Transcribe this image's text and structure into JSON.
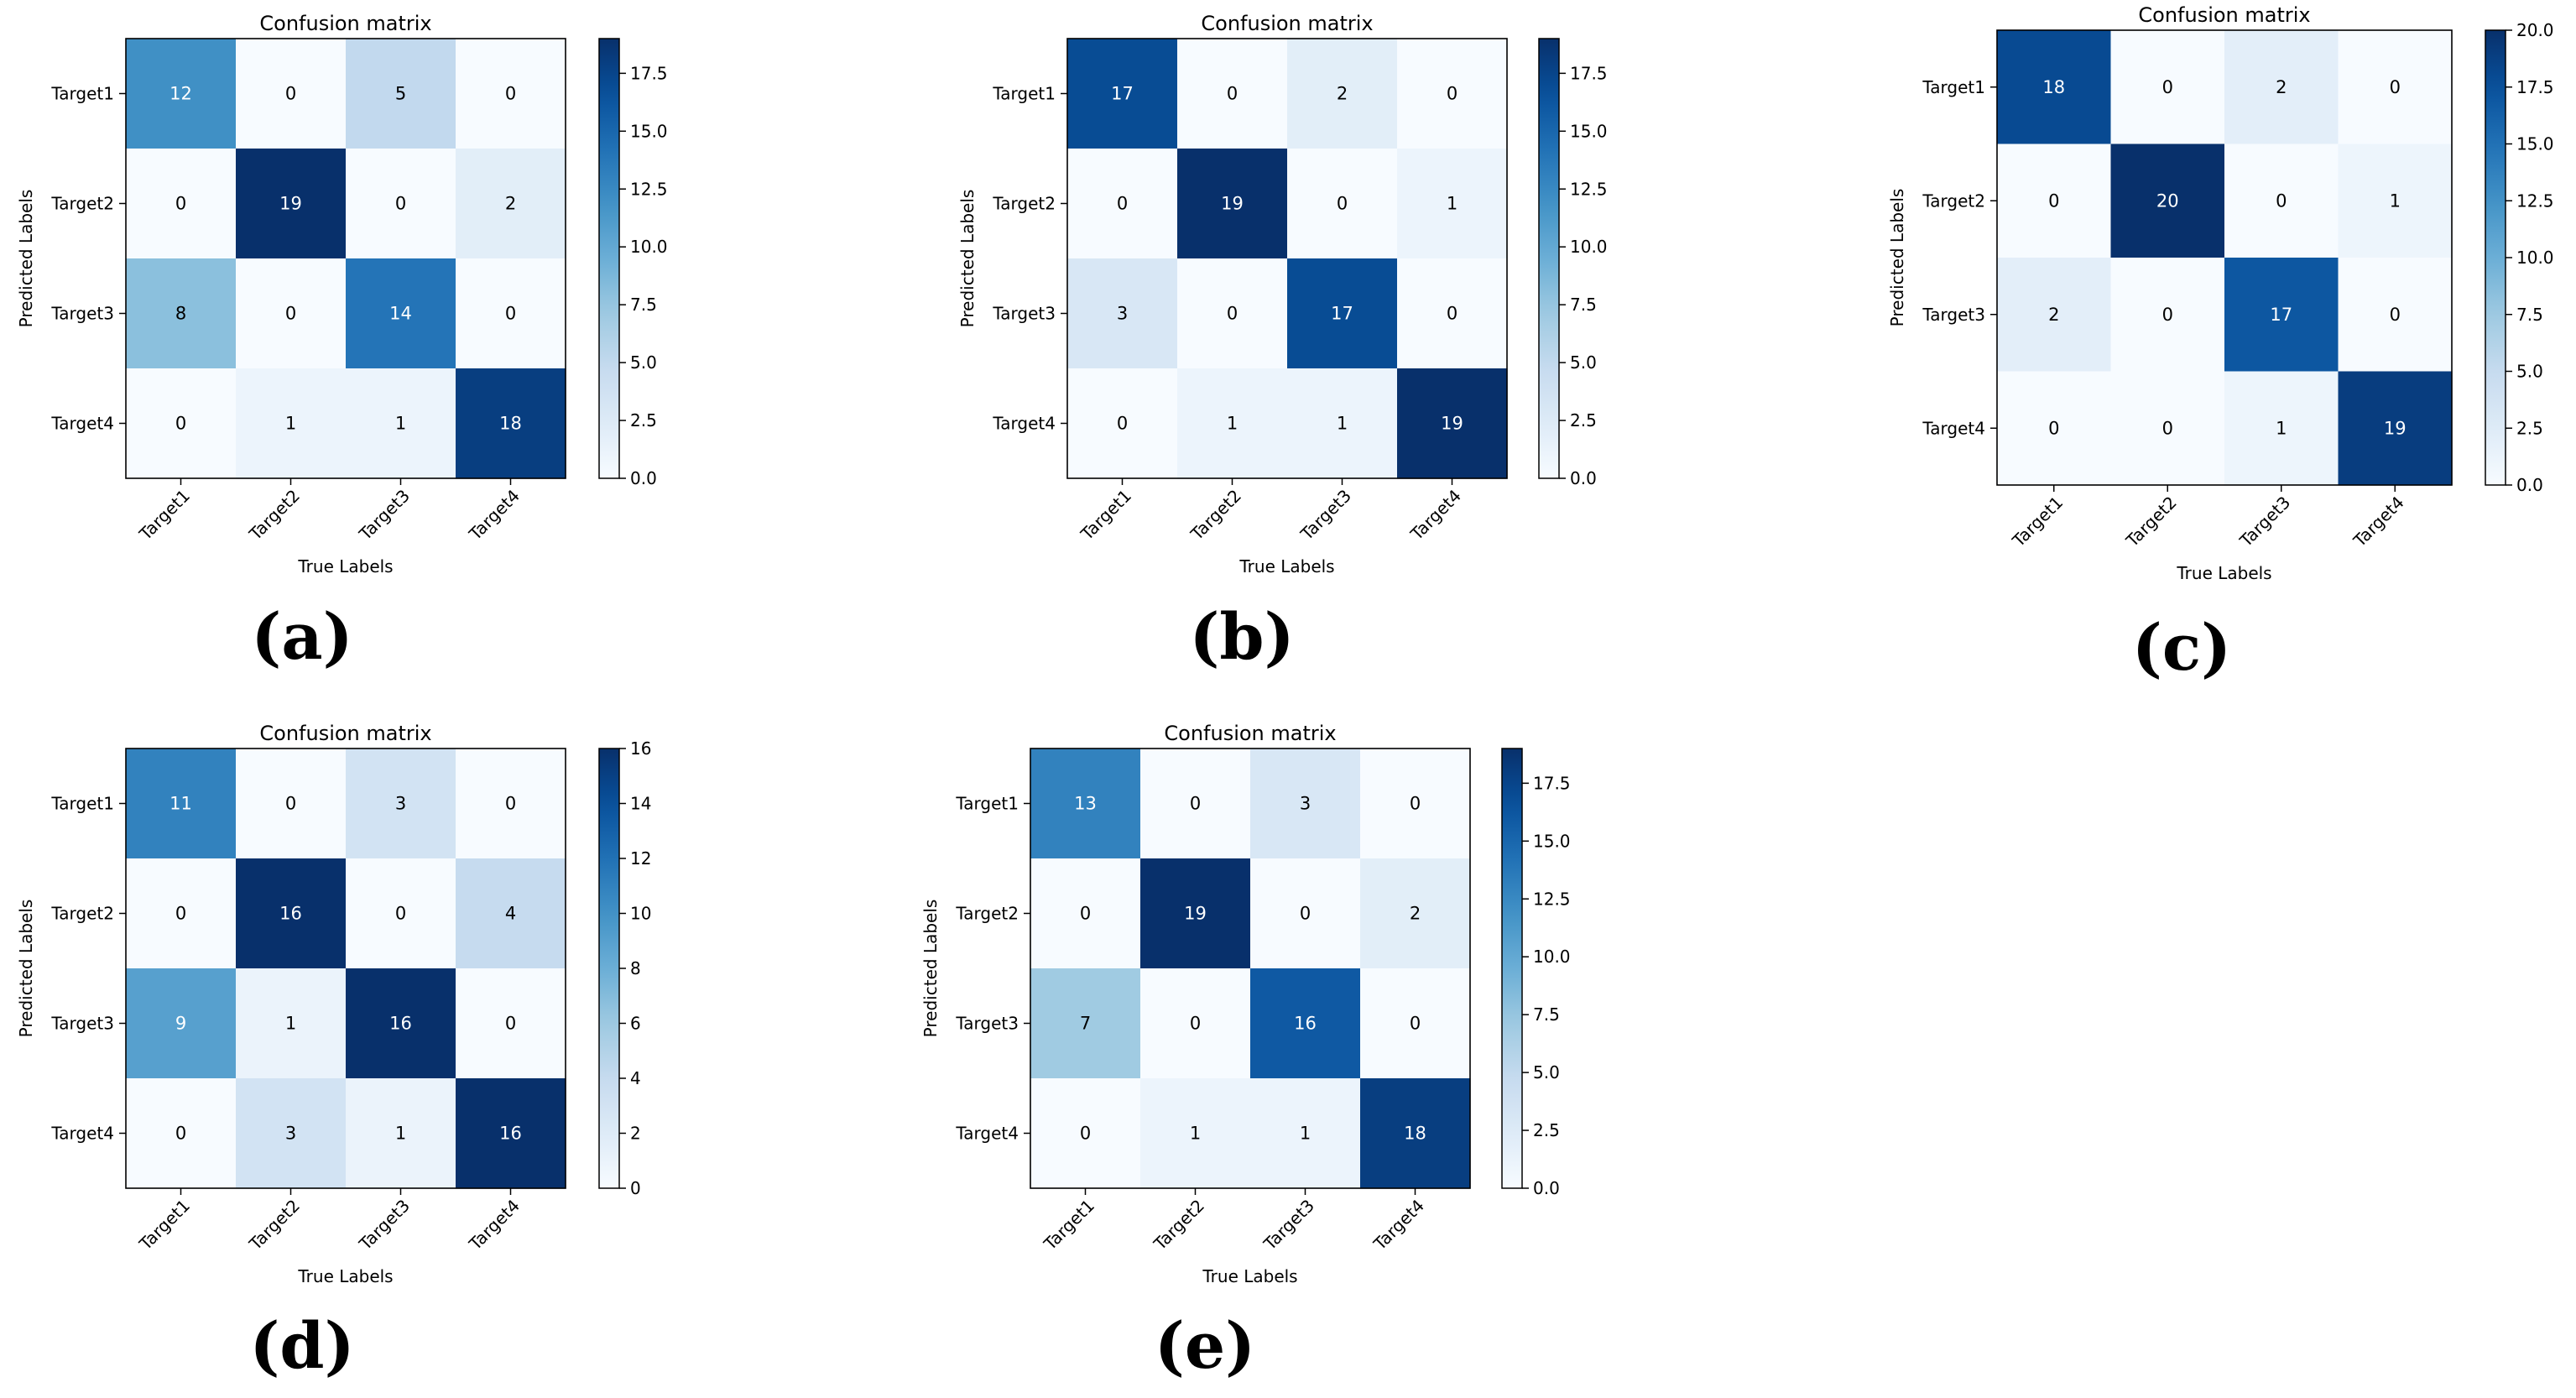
{
  "chart_data": [
    {
      "type": "heatmap",
      "panel_label": "(a)",
      "title": "Confusion matrix",
      "xlabel": "True Labels",
      "ylabel": "Predicted Labels",
      "x_tick_labels": [
        "Target1",
        "Target2",
        "Target3",
        "Target4"
      ],
      "y_tick_labels": [
        "Target1",
        "Target2",
        "Target3",
        "Target4"
      ],
      "values": [
        [
          12,
          0,
          5,
          0
        ],
        [
          0,
          19,
          0,
          2
        ],
        [
          8,
          0,
          14,
          0
        ],
        [
          0,
          1,
          1,
          18
        ]
      ],
      "colorbar": {
        "min": 0,
        "max": 19,
        "ticks": [
          "0.0",
          "2.5",
          "5.0",
          "7.5",
          "10.0",
          "12.5",
          "15.0",
          "17.5"
        ]
      },
      "colormap": "Blues"
    },
    {
      "type": "heatmap",
      "panel_label": "(b)",
      "title": "Confusion matrix",
      "xlabel": "True Labels",
      "ylabel": "Predicted Labels",
      "x_tick_labels": [
        "Target1",
        "Target2",
        "Target3",
        "Target4"
      ],
      "y_tick_labels": [
        "Target1",
        "Target2",
        "Target3",
        "Target4"
      ],
      "values": [
        [
          17,
          0,
          2,
          0
        ],
        [
          0,
          19,
          0,
          1
        ],
        [
          3,
          0,
          17,
          0
        ],
        [
          0,
          1,
          1,
          19
        ]
      ],
      "colorbar": {
        "min": 0,
        "max": 19,
        "ticks": [
          "0.0",
          "2.5",
          "5.0",
          "7.5",
          "10.0",
          "12.5",
          "15.0",
          "17.5"
        ]
      },
      "colormap": "Blues"
    },
    {
      "type": "heatmap",
      "panel_label": "(c)",
      "title": "Confusion matrix",
      "xlabel": "True Labels",
      "ylabel": "Predicted Labels",
      "x_tick_labels": [
        "Target1",
        "Target2",
        "Target3",
        "Target4"
      ],
      "y_tick_labels": [
        "Target1",
        "Target2",
        "Target3",
        "Target4"
      ],
      "values": [
        [
          18,
          0,
          2,
          0
        ],
        [
          0,
          20,
          0,
          1
        ],
        [
          2,
          0,
          17,
          0
        ],
        [
          0,
          0,
          1,
          19
        ]
      ],
      "colorbar": {
        "min": 0,
        "max": 20,
        "ticks": [
          "0.0",
          "2.5",
          "5.0",
          "7.5",
          "10.0",
          "12.5",
          "15.0",
          "17.5",
          "20.0"
        ]
      },
      "colormap": "Blues"
    },
    {
      "type": "heatmap",
      "panel_label": "(d)",
      "title": "Confusion matrix",
      "xlabel": "True Labels",
      "ylabel": "Predicted Labels",
      "x_tick_labels": [
        "Target1",
        "Target2",
        "Target3",
        "Target4"
      ],
      "y_tick_labels": [
        "Target1",
        "Target2",
        "Target3",
        "Target4"
      ],
      "values": [
        [
          11,
          0,
          3,
          0
        ],
        [
          0,
          16,
          0,
          4
        ],
        [
          9,
          1,
          16,
          0
        ],
        [
          0,
          3,
          1,
          16
        ]
      ],
      "colorbar": {
        "min": 0,
        "max": 16,
        "ticks": [
          "0",
          "2",
          "4",
          "6",
          "8",
          "10",
          "12",
          "14",
          "16"
        ]
      },
      "colormap": "Blues"
    },
    {
      "type": "heatmap",
      "panel_label": "(e)",
      "title": "Confusion matrix",
      "xlabel": "True Labels",
      "ylabel": "Predicted Labels",
      "x_tick_labels": [
        "Target1",
        "Target2",
        "Target3",
        "Target4"
      ],
      "y_tick_labels": [
        "Target1",
        "Target2",
        "Target3",
        "Target4"
      ],
      "values": [
        [
          13,
          0,
          3,
          0
        ],
        [
          0,
          19,
          0,
          2
        ],
        [
          7,
          0,
          16,
          0
        ],
        [
          0,
          1,
          1,
          18
        ]
      ],
      "colorbar": {
        "min": 0,
        "max": 19,
        "ticks": [
          "0.0",
          "2.5",
          "5.0",
          "7.5",
          "10.0",
          "12.5",
          "15.0",
          "17.5"
        ]
      },
      "colormap": "Blues"
    }
  ]
}
